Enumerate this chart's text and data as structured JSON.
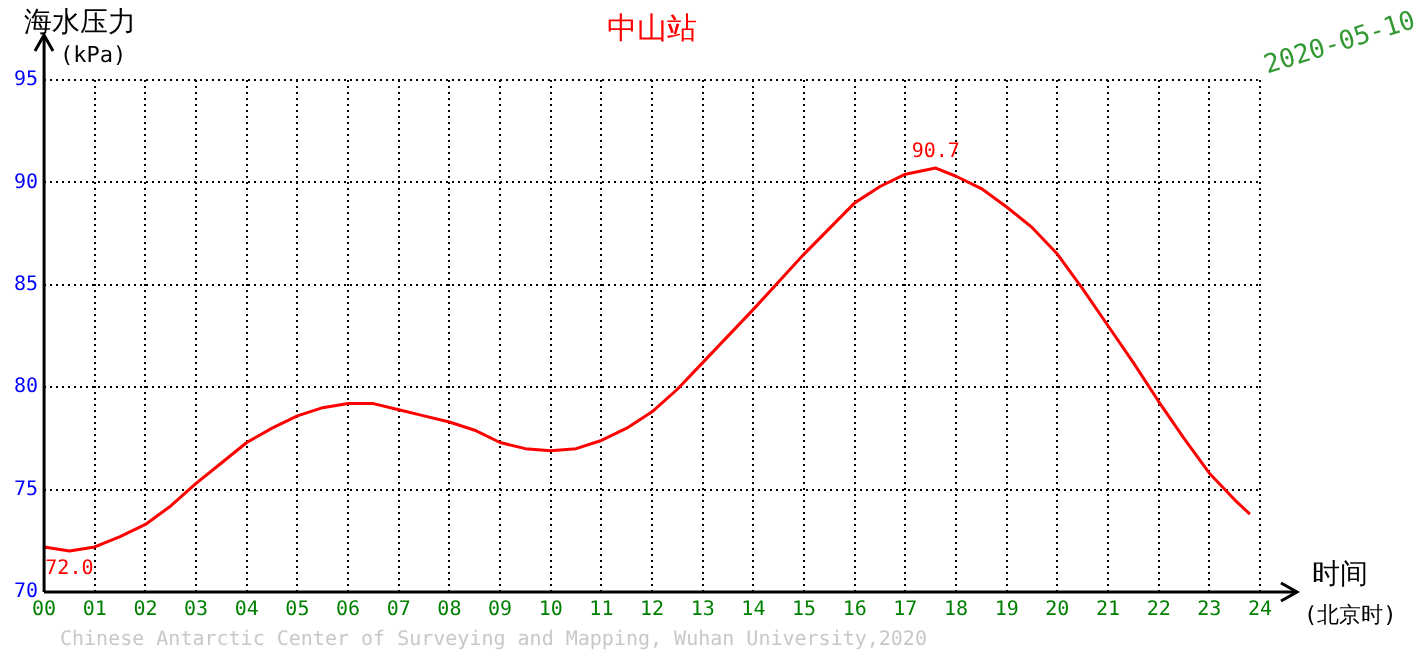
{
  "chart_data": {
    "type": "line",
    "title": "中山站",
    "subtitle": "2020-05-10",
    "ylabel": "海水压力\n(kPa)",
    "xlabel": "时间\n(北京时)",
    "x": [
      0,
      0.5,
      1,
      1.5,
      2,
      2.5,
      3,
      3.5,
      4,
      4.5,
      5,
      5.5,
      6,
      6.5,
      7,
      7.5,
      8,
      8.5,
      9,
      9.5,
      10,
      10.5,
      11,
      11.5,
      12,
      12.5,
      13,
      14,
      15,
      16,
      16.5,
      17,
      17.6,
      18,
      18.5,
      19,
      19.5,
      20,
      20.5,
      21,
      21.5,
      22,
      22.5,
      23,
      23.5,
      23.8
    ],
    "series": [
      {
        "color": "#ff0000",
        "values": [
          72.2,
          72.0,
          72.2,
          72.7,
          73.3,
          74.2,
          75.3,
          76.3,
          77.3,
          78.0,
          78.6,
          79.0,
          79.2,
          79.2,
          78.9,
          78.6,
          78.3,
          77.9,
          77.3,
          77.0,
          76.9,
          77.0,
          77.4,
          78.0,
          78.8,
          79.9,
          81.2,
          83.8,
          86.5,
          89.0,
          89.8,
          90.4,
          90.7,
          90.3,
          89.7,
          88.8,
          87.8,
          86.5,
          84.8,
          83.0,
          81.2,
          79.3,
          77.5,
          75.8,
          74.5,
          73.8
        ]
      }
    ],
    "xlim": [
      0,
      24
    ],
    "xticks": [
      {
        "value": 0,
        "label": "00"
      },
      {
        "value": 1,
        "label": "01"
      },
      {
        "value": 2,
        "label": "02"
      },
      {
        "value": 3,
        "label": "03"
      },
      {
        "value": 4,
        "label": "04"
      },
      {
        "value": 5,
        "label": "05"
      },
      {
        "value": 6,
        "label": "06"
      },
      {
        "value": 7,
        "label": "07"
      },
      {
        "value": 8,
        "label": "08"
      },
      {
        "value": 9,
        "label": "09"
      },
      10,
      11,
      12,
      13,
      14,
      15,
      16,
      17,
      18,
      19,
      20,
      21,
      22,
      23,
      24
    ],
    "ylim": [
      70,
      95
    ],
    "yticks": [
      70,
      75,
      80,
      85,
      90,
      95
    ],
    "grid": true,
    "legend": false,
    "marker": "none",
    "line_style": "solid",
    "annotations": [
      {
        "text": "72.0",
        "x": 0.5,
        "y": 72.0
      },
      {
        "text": "90.7",
        "x": 17.6,
        "y": 90.7
      },
      "Chinese Antarctic Center of Surveying and Mapping, Wuhan University,2020"
    ]
  }
}
